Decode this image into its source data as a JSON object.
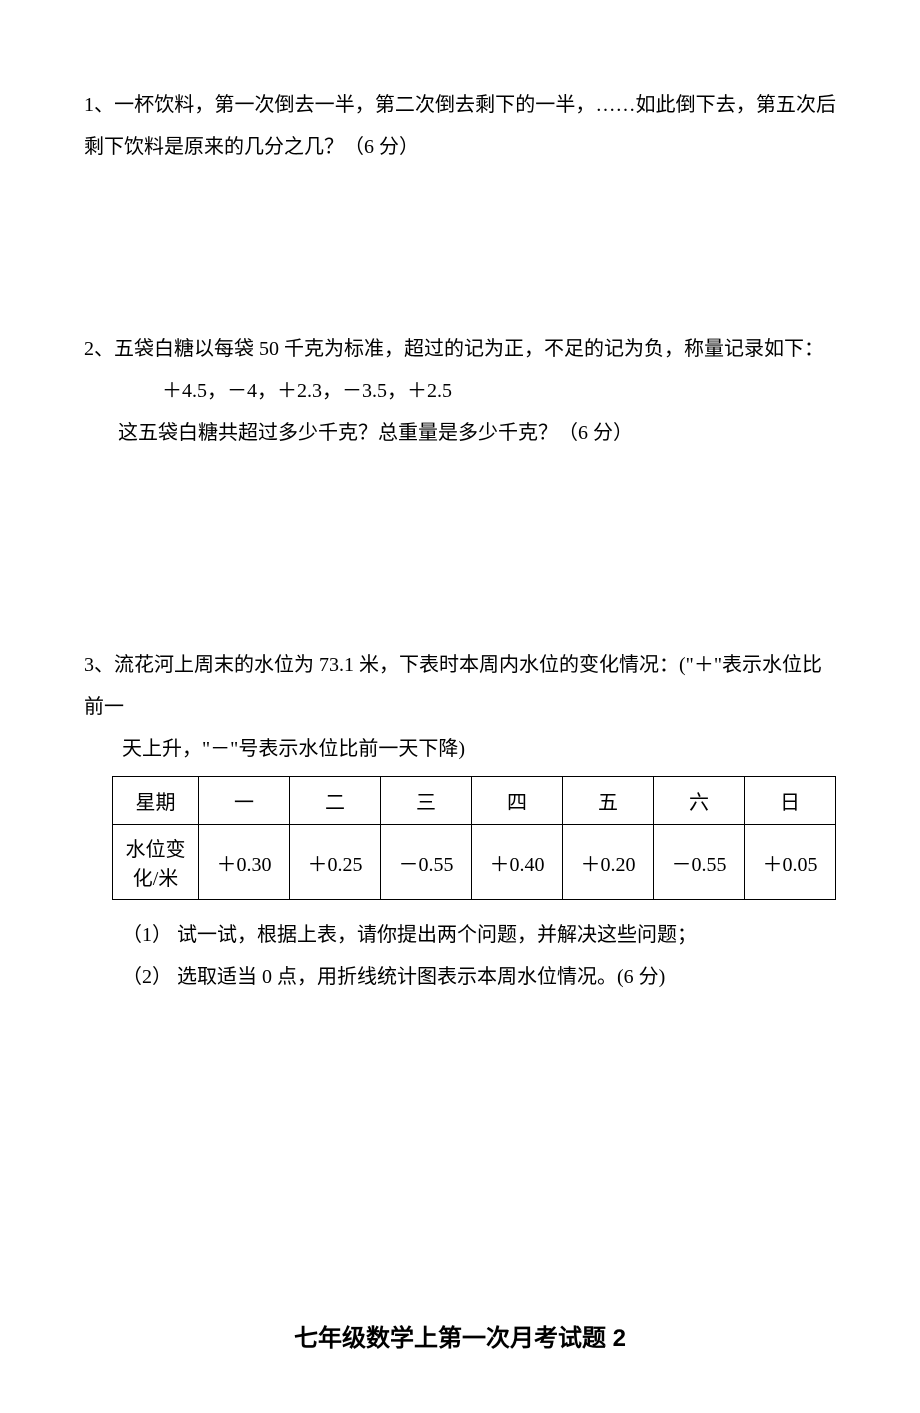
{
  "q1": {
    "text": "1、一杯饮料，第一次倒去一半，第二次倒去剩下的一半，……如此倒下去，第五次后剩下饮料是原来的几分之几？（6 分）"
  },
  "q2": {
    "line1": "2、五袋白糖以每袋 50 千克为标准，超过的记为正，不足的记为负，称量记录如下：",
    "line2": "＋4.5，－4，＋2.3，－3.5，＋2.5",
    "line3": "这五袋白糖共超过多少千克？总重量是多少千克？（6 分）"
  },
  "q3": {
    "intro1": "3、流花河上周末的水位为 73.1 米，下表时本周内水位的变化情况：(\"＋\"表示水位比前一",
    "intro2": "天上升，\"－\"号表示水位比前一天下降)",
    "table": {
      "header_label": "星期",
      "headers": [
        "一",
        "二",
        "三",
        "四",
        "五",
        "六",
        "日"
      ],
      "row_label": "水位变化/米",
      "values": [
        "＋0.30",
        "＋0.25",
        "－0.55",
        "＋0.40",
        "＋0.20",
        "－0.55",
        "＋0.05"
      ],
      "border_color": "#000000",
      "cell_fontsize": 20
    },
    "sub1": "（1） 试一试，根据上表，请你提出两个问题，并解决这些问题；",
    "sub2": "（2） 选取适当 0 点，用折线统计图表示本周水位情况。(6 分)"
  },
  "title": "七年级数学上第一次月考试题 2",
  "style": {
    "background_color": "#ffffff",
    "text_color": "#000000",
    "body_fontsize": 20,
    "title_fontsize": 24,
    "line_height": 2.1
  }
}
